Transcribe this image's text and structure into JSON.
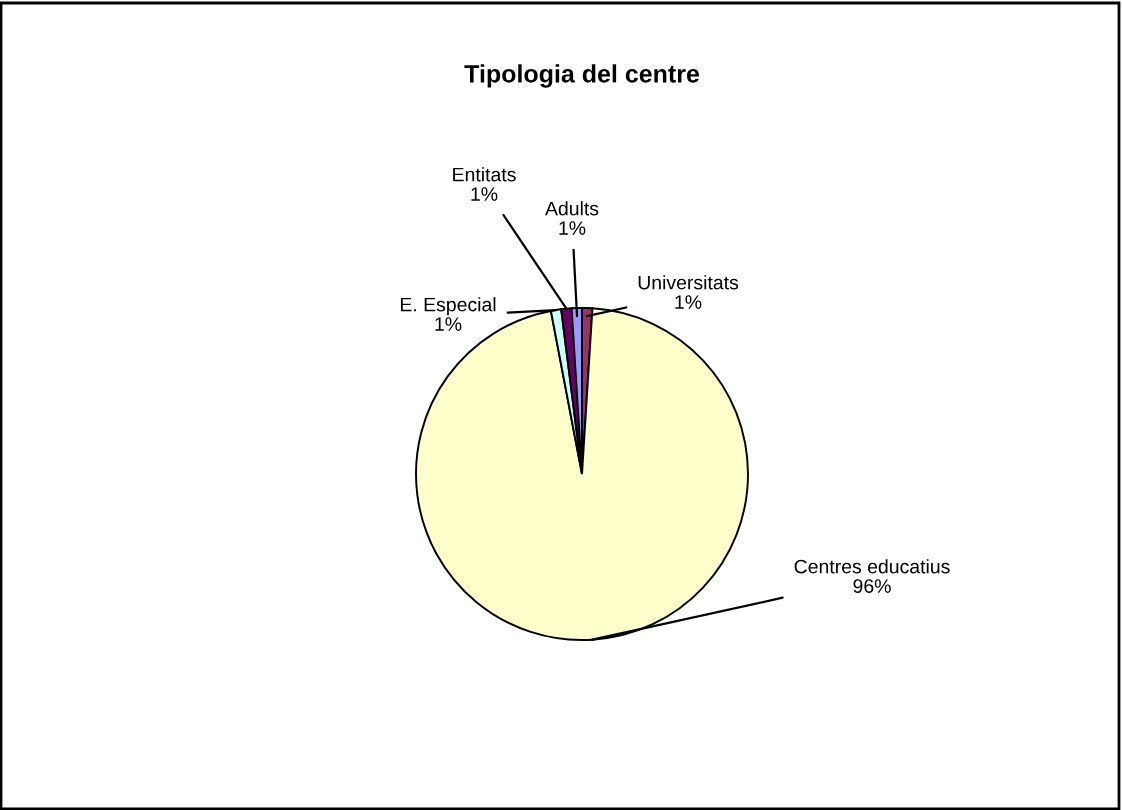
{
  "chart_data": {
    "type": "pie",
    "title": "Tipologia del centre",
    "categories": [
      "Universitats",
      "Centres educatius",
      "E. Especial",
      "Entitats",
      "Adults"
    ],
    "values": [
      1,
      96,
      1,
      1,
      1
    ],
    "colors": [
      "#993366",
      "#ffffcc",
      "#ccffff",
      "#660066",
      "#9999ff"
    ],
    "value_labels": [
      "1%",
      "96%",
      "1%",
      "1%",
      "1%"
    ],
    "legend": false
  }
}
